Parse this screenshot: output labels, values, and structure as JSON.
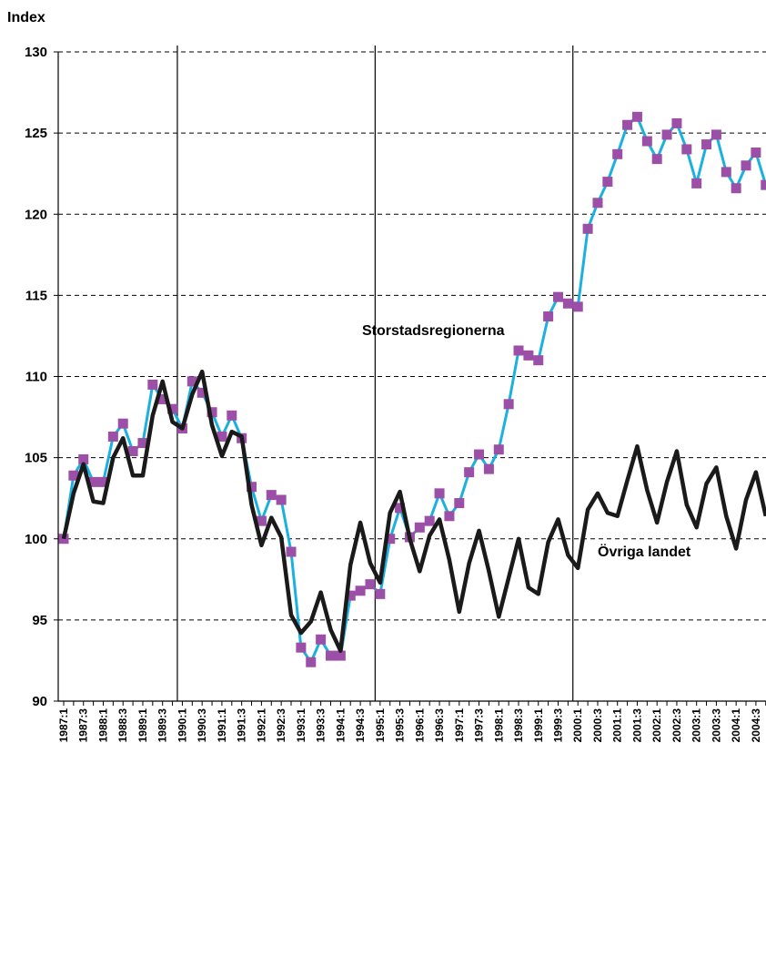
{
  "chart_data": {
    "type": "line",
    "ylabel": "Index",
    "ylim": [
      90,
      130
    ],
    "yticks": [
      90,
      95,
      100,
      105,
      110,
      115,
      120,
      125,
      130
    ],
    "grid": "horizontal dashed",
    "vertical_markers": [
      "1990:1",
      "1995:1",
      "2000:1"
    ],
    "xtick_labels": [
      "1987:1",
      "1987:3",
      "1988:1",
      "1988:3",
      "1989:1",
      "1989:3",
      "1990:1",
      "1990:3",
      "1991:1",
      "1991:3",
      "1992:1",
      "1992:3",
      "1993:1",
      "1993:3",
      "1994:1",
      "1994:3",
      "1995:1",
      "1995:3",
      "1996:1",
      "1996:3",
      "1997:1",
      "1997:3",
      "1998:1",
      "1998:3",
      "1999:1",
      "1999:3",
      "2000:1",
      "2000:3",
      "2001:1",
      "2001:3",
      "2002:1",
      "2002:3",
      "2003:1",
      "2003:3",
      "2004:1",
      "2004:3"
    ],
    "x": [
      "1987:1",
      "1987:2",
      "1987:3",
      "1987:4",
      "1988:1",
      "1988:2",
      "1988:3",
      "1988:4",
      "1989:1",
      "1989:2",
      "1989:3",
      "1989:4",
      "1990:1",
      "1990:2",
      "1990:3",
      "1990:4",
      "1991:1",
      "1991:2",
      "1991:3",
      "1991:4",
      "1992:1",
      "1992:2",
      "1992:3",
      "1992:4",
      "1993:1",
      "1993:2",
      "1993:3",
      "1993:4",
      "1994:1",
      "1994:2",
      "1994:3",
      "1994:4",
      "1995:1",
      "1995:2",
      "1995:3",
      "1995:4",
      "1996:1",
      "1996:2",
      "1996:3",
      "1996:4",
      "1997:1",
      "1997:2",
      "1997:3",
      "1997:4",
      "1998:1",
      "1998:2",
      "1998:3",
      "1998:4",
      "1999:1",
      "1999:2",
      "1999:3",
      "1999:4",
      "2000:1",
      "2000:2",
      "2000:3",
      "2000:4",
      "2001:1",
      "2001:2",
      "2001:3",
      "2001:4",
      "2002:1",
      "2002:2",
      "2002:3",
      "2002:4",
      "2003:1",
      "2003:2",
      "2003:3",
      "2003:4",
      "2004:1",
      "2004:2",
      "2004:3",
      "2004:4"
    ],
    "series": [
      {
        "name": "Storstadsregionerna",
        "color": "#1ab0e0",
        "marker_color": "#9b4fa6",
        "values": [
          100.0,
          103.9,
          104.9,
          103.5,
          103.5,
          106.3,
          107.1,
          105.4,
          105.9,
          109.5,
          108.6,
          108.0,
          106.8,
          109.7,
          109.0,
          107.8,
          106.3,
          107.6,
          106.2,
          103.2,
          101.1,
          102.7,
          102.4,
          99.2,
          93.3,
          92.4,
          93.8,
          92.8,
          92.8,
          96.5,
          96.8,
          97.2,
          96.6,
          100.0,
          101.9,
          100.1,
          100.7,
          101.1,
          102.8,
          101.4,
          102.2,
          104.1,
          105.2,
          104.3,
          105.5,
          108.3,
          111.6,
          111.3,
          111.0,
          113.7,
          114.9,
          114.5,
          114.3,
          119.1,
          120.7,
          122.0,
          123.7,
          125.5,
          126.0,
          124.5,
          123.4,
          124.9,
          125.6,
          124.0,
          121.9,
          124.3,
          124.9,
          122.6,
          121.6,
          123.0,
          123.8,
          121.8
        ]
      },
      {
        "name": "Övriga landet",
        "color": "#1a1a1a",
        "values": [
          100.0,
          102.8,
          104.6,
          102.3,
          102.2,
          105.0,
          106.2,
          103.9,
          103.9,
          107.6,
          109.7,
          107.2,
          106.8,
          108.9,
          110.3,
          107.0,
          105.1,
          106.6,
          106.3,
          102.1,
          99.6,
          101.3,
          100.1,
          95.3,
          94.2,
          94.9,
          96.7,
          94.4,
          93.1,
          98.4,
          101.0,
          98.5,
          97.3,
          101.6,
          102.9,
          100.0,
          98.0,
          100.2,
          101.2,
          98.7,
          95.5,
          98.5,
          100.5,
          98.0,
          95.2,
          97.6,
          100.0,
          97.0,
          96.6,
          99.8,
          101.2,
          99.0,
          98.2,
          101.8,
          102.8,
          101.6,
          101.4,
          103.6,
          105.7,
          103.0,
          101.0,
          103.5,
          105.4,
          102.1,
          100.7,
          103.4,
          104.4,
          101.4,
          99.4,
          102.4,
          104.1,
          101.4
        ]
      }
    ],
    "annotations": [
      "Storstadsregionerna",
      "Övriga landet"
    ]
  }
}
